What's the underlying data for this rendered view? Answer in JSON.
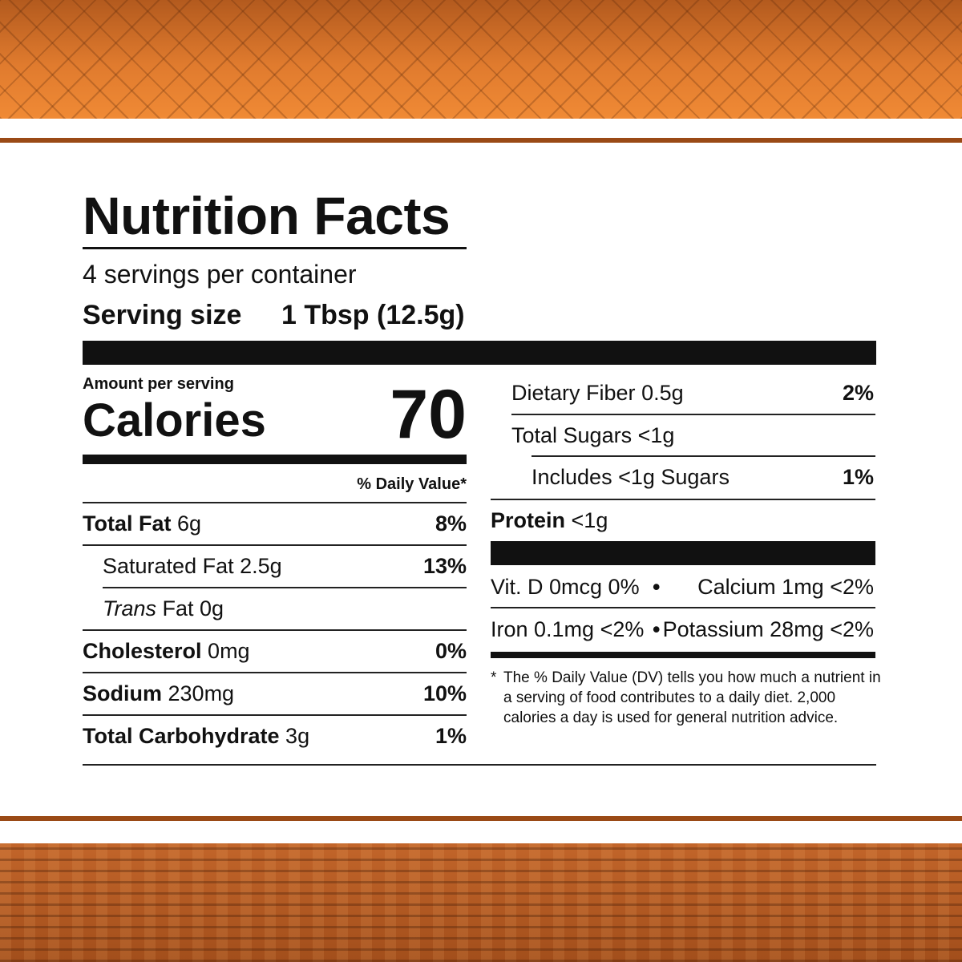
{
  "title": "Nutrition Facts",
  "servings_per_container": "4 servings per container",
  "serving_size_label": "Serving size",
  "serving_size_value": "1 Tbsp (12.5g)",
  "amount_per_serving": "Amount per serving",
  "calories_label": "Calories",
  "calories_value": "70",
  "daily_value_header": "% Daily Value*",
  "left_rows": [
    {
      "name": "Total Fat",
      "amount": "6g",
      "dv": "8%"
    },
    {
      "name": "Saturated Fat",
      "amount": "2.5g",
      "dv": "13%"
    },
    {
      "name": "Trans",
      "amount": "Fat 0g",
      "dv": ""
    },
    {
      "name": "Cholesterol",
      "amount": "0mg",
      "dv": "0%"
    },
    {
      "name": "Sodium",
      "amount": "230mg",
      "dv": "10%"
    },
    {
      "name": "Total Carbohydrate",
      "amount": "3g",
      "dv": "1%"
    }
  ],
  "right_rows": [
    {
      "name": "Dietary Fiber",
      "amount": "0.5g",
      "dv": "2%"
    },
    {
      "name": "Total Sugars",
      "amount": "<1g",
      "dv": ""
    },
    {
      "name": "Includes",
      "amount": "<1g Sugars",
      "dv": "1%"
    },
    {
      "name": "Protein",
      "amount": "<1g",
      "dv": ""
    }
  ],
  "vitamins": {
    "vit_d": "Vit. D 0mcg 0%",
    "calcium": "Calcium 1mg <2%",
    "iron": "Iron 0.1mg <2%",
    "potassium": "Potassium 28mg <2%",
    "bullet": "•"
  },
  "footnote": {
    "star": "*",
    "text": "The % Daily Value (DV) tells you how much a nutrient in a serving of food contributes to a daily diet. 2,000 calories a day is used for general nutrition advice."
  },
  "colors": {
    "accent_orange": "#d9722a",
    "accent_brown": "#9a4a16",
    "text": "#111111"
  }
}
